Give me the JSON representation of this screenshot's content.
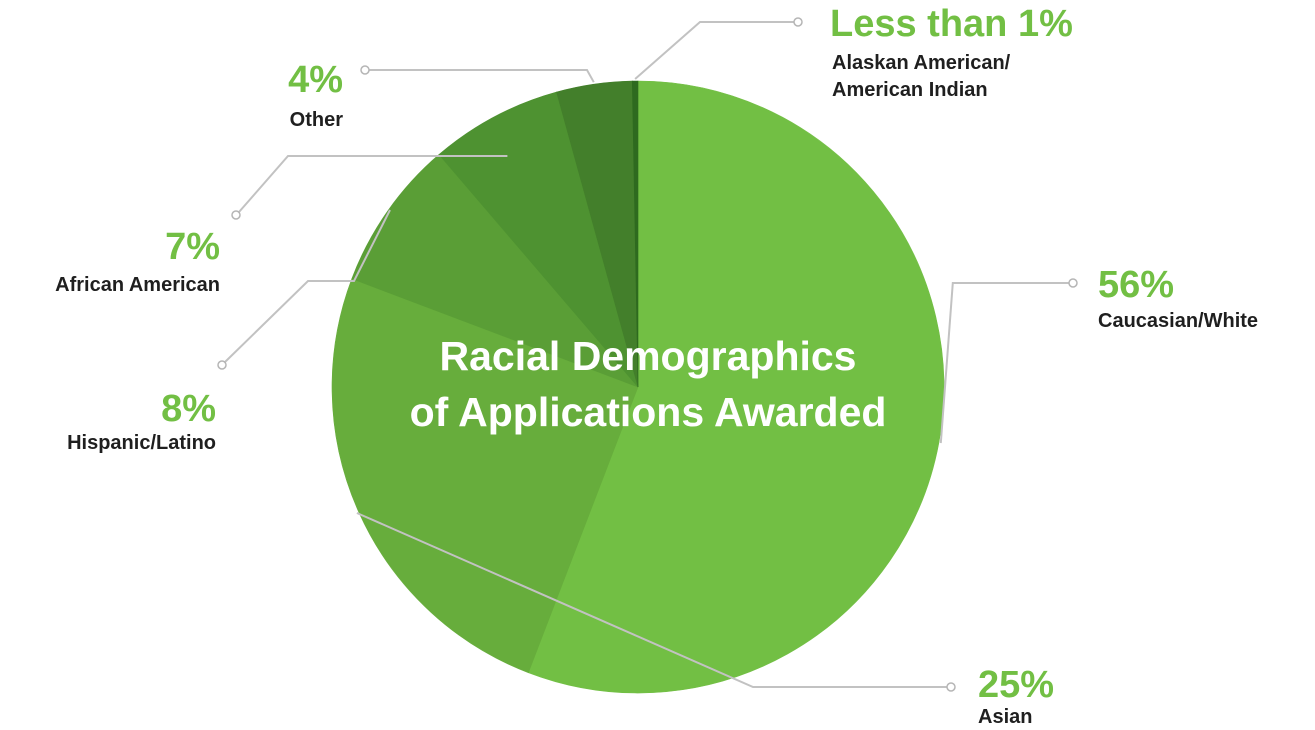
{
  "chart_data": {
    "type": "pie",
    "title": [
      "Racial Demographics",
      "of Applications Awarded"
    ],
    "slices": [
      {
        "label": "Caucasian/White",
        "value": 56,
        "display": "56%",
        "color": "#72bf44"
      },
      {
        "label": "Asian",
        "value": 25,
        "display": "25%",
        "color": "#67ad3c"
      },
      {
        "label": "Hispanic/Latino",
        "value": 8,
        "display": "8%",
        "color": "#5a9e36"
      },
      {
        "label": "African American",
        "value": 7,
        "display": "7%",
        "color": "#4e9231"
      },
      {
        "label": "Other",
        "value": 4,
        "display": "4%",
        "color": "#437f2b"
      },
      {
        "label": [
          "Alaskan American/",
          "American Indian"
        ],
        "value": 0.3,
        "display": "Less than 1%",
        "color": "#2e6a1f"
      }
    ],
    "colors": {
      "accent": "#72bf44",
      "label_text": "#1f1f1f",
      "leader": "#c2c2c2"
    }
  }
}
